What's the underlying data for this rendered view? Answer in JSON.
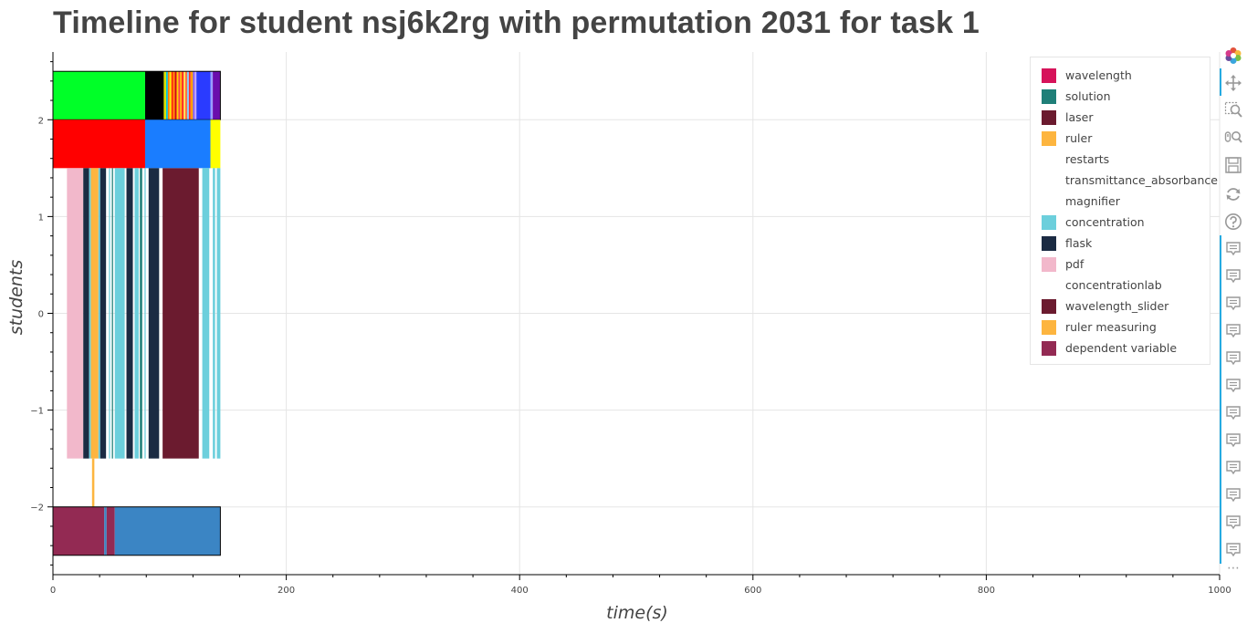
{
  "chart_data": {
    "type": "timeline",
    "title": "Timeline for student nsj6k2rg with permutation 2031 for task 1",
    "xlabel": "time(s)",
    "ylabel": "students",
    "xlim": [
      0,
      1000
    ],
    "ylim": [
      -2.7,
      2.7
    ],
    "x_ticks": [
      0,
      200,
      400,
      600,
      800,
      1000
    ],
    "y_ticks": [
      2,
      1,
      0,
      -1,
      -2
    ],
    "y_tick_labels": [
      "2",
      "1",
      "0",
      "−1",
      "−2"
    ],
    "grid": true,
    "legend_position": "top-right",
    "legend": [
      {
        "label": "wavelength",
        "color": "#d6135a"
      },
      {
        "label": "solution",
        "color": "#1f7f78"
      },
      {
        "label": "laser",
        "color": "#6b1b2f"
      },
      {
        "label": "ruler",
        "color": "#fdb53f"
      },
      {
        "label": "restarts",
        "color": ""
      },
      {
        "label": "transmittance_absorbance",
        "color": ""
      },
      {
        "label": "magnifier",
        "color": ""
      },
      {
        "label": "concentration",
        "color": "#6ccfdc"
      },
      {
        "label": "flask",
        "color": "#1b2b43"
      },
      {
        "label": "pdf",
        "color": "#f2b8cb"
      },
      {
        "label": "concentrationlab",
        "color": ""
      },
      {
        "label": "wavelength_slider",
        "color": "#6b1b2f"
      },
      {
        "label": "ruler measuring",
        "color": "#fdb53f"
      },
      {
        "label": "dependent variable",
        "color": "#932a53"
      }
    ],
    "rows": [
      {
        "name": "row_top",
        "y_top": 2.5,
        "y_bottom": 2.0,
        "outlined": true,
        "segments": [
          {
            "start": 0,
            "end": 79,
            "color": "#00ff28"
          },
          {
            "start": 79,
            "end": 95,
            "color": "#000000"
          },
          {
            "start": 95,
            "end": 97,
            "color": "#d8e000"
          },
          {
            "start": 97,
            "end": 98.5,
            "color": "#00c4e0"
          },
          {
            "start": 98.5,
            "end": 100,
            "color": "#ff7a00"
          },
          {
            "start": 100,
            "end": 101.5,
            "color": "#ffee00"
          },
          {
            "start": 101.5,
            "end": 103,
            "color": "#ff2200"
          },
          {
            "start": 103,
            "end": 104.5,
            "color": "#ff8c00"
          },
          {
            "start": 104.5,
            "end": 106,
            "color": "#d0021b"
          },
          {
            "start": 106,
            "end": 107.5,
            "color": "#ffd400"
          },
          {
            "start": 107.5,
            "end": 109,
            "color": "#ff4040"
          },
          {
            "start": 109,
            "end": 110.5,
            "color": "#ffb000"
          },
          {
            "start": 110.5,
            "end": 112,
            "color": "#ff1a1a"
          },
          {
            "start": 112,
            "end": 113.5,
            "color": "#ffe050"
          },
          {
            "start": 113.5,
            "end": 115,
            "color": "#ff6a3d"
          },
          {
            "start": 115,
            "end": 116.5,
            "color": "#7fd0ff"
          },
          {
            "start": 116.5,
            "end": 118,
            "color": "#ff2a2a"
          },
          {
            "start": 118,
            "end": 120,
            "color": "#ff9e00"
          },
          {
            "start": 120,
            "end": 121.5,
            "color": "#7a5cff"
          },
          {
            "start": 121.5,
            "end": 123,
            "color": "#c0a0ff"
          },
          {
            "start": 123,
            "end": 135,
            "color": "#2a3bff"
          },
          {
            "start": 135,
            "end": 137,
            "color": "#9b9bff"
          },
          {
            "start": 137,
            "end": 143.5,
            "color": "#6a0dad"
          }
        ]
      },
      {
        "name": "row_second",
        "y_top": 2.0,
        "y_bottom": 1.5,
        "outlined": false,
        "segments": [
          {
            "start": 0,
            "end": 79,
            "color": "#ff0000"
          },
          {
            "start": 79,
            "end": 135,
            "color": "#1a7dff"
          },
          {
            "start": 135,
            "end": 143.5,
            "color": "#ffff00"
          }
        ]
      },
      {
        "name": "row_middle",
        "y_top": 1.5,
        "y_bottom": -1.5,
        "outlined": false,
        "segments": [
          {
            "start": 12,
            "end": 26,
            "color": "#f2b8cb"
          },
          {
            "start": 26,
            "end": 31,
            "color": "#1b2b43"
          },
          {
            "start": 31,
            "end": 32.5,
            "color": "#6ccfdc"
          },
          {
            "start": 32.5,
            "end": 39,
            "color": "#fdb53f"
          },
          {
            "start": 39,
            "end": 40.5,
            "color": "#6ccfdc"
          },
          {
            "start": 40.5,
            "end": 45.5,
            "color": "#1b2b43"
          },
          {
            "start": 48,
            "end": 49,
            "color": "#6ccfdc"
          },
          {
            "start": 50.5,
            "end": 51.5,
            "color": "#1f7f78"
          },
          {
            "start": 53,
            "end": 61.5,
            "color": "#6ccfdc"
          },
          {
            "start": 63,
            "end": 68.5,
            "color": "#1b2b43"
          },
          {
            "start": 70,
            "end": 73.5,
            "color": "#6ccfdc"
          },
          {
            "start": 74.5,
            "end": 76.5,
            "color": "#1f7f78"
          },
          {
            "start": 78.5,
            "end": 79.5,
            "color": "#6ccfdc"
          },
          {
            "start": 82,
            "end": 91,
            "color": "#1b2b43"
          },
          {
            "start": 94,
            "end": 125,
            "color": "#6b1b2f"
          },
          {
            "start": 128,
            "end": 134,
            "color": "#6ccfdc"
          },
          {
            "start": 137,
            "end": 139,
            "color": "#6ccfdc"
          },
          {
            "start": 140.5,
            "end": 143.5,
            "color": "#6ccfdc"
          }
        ]
      },
      {
        "name": "row_thin",
        "y_top": -1.5,
        "y_bottom": -2.0,
        "outlined": false,
        "segments": [
          {
            "start": 33.5,
            "end": 35.5,
            "color": "#fdb53f"
          }
        ]
      },
      {
        "name": "row_bottom",
        "y_top": -2.0,
        "y_bottom": -2.5,
        "outlined": true,
        "segments": [
          {
            "start": 0,
            "end": 44,
            "color": "#932a53"
          },
          {
            "start": 44,
            "end": 46,
            "color": "#3b85c4"
          },
          {
            "start": 46,
            "end": 53,
            "color": "#932a53"
          },
          {
            "start": 53,
            "end": 143.5,
            "color": "#3b85c4"
          }
        ]
      }
    ]
  },
  "toolbar": {
    "tools": [
      {
        "icon": "bokeh-logo-icon"
      },
      {
        "icon": "pan-icon"
      },
      {
        "icon": "box-zoom-icon"
      },
      {
        "icon": "wheel-zoom-icon"
      },
      {
        "icon": "save-icon"
      },
      {
        "icon": "reset-icon"
      },
      {
        "icon": "help-icon"
      }
    ],
    "hover_tool_count": 12,
    "overflow_label": "⋯"
  }
}
